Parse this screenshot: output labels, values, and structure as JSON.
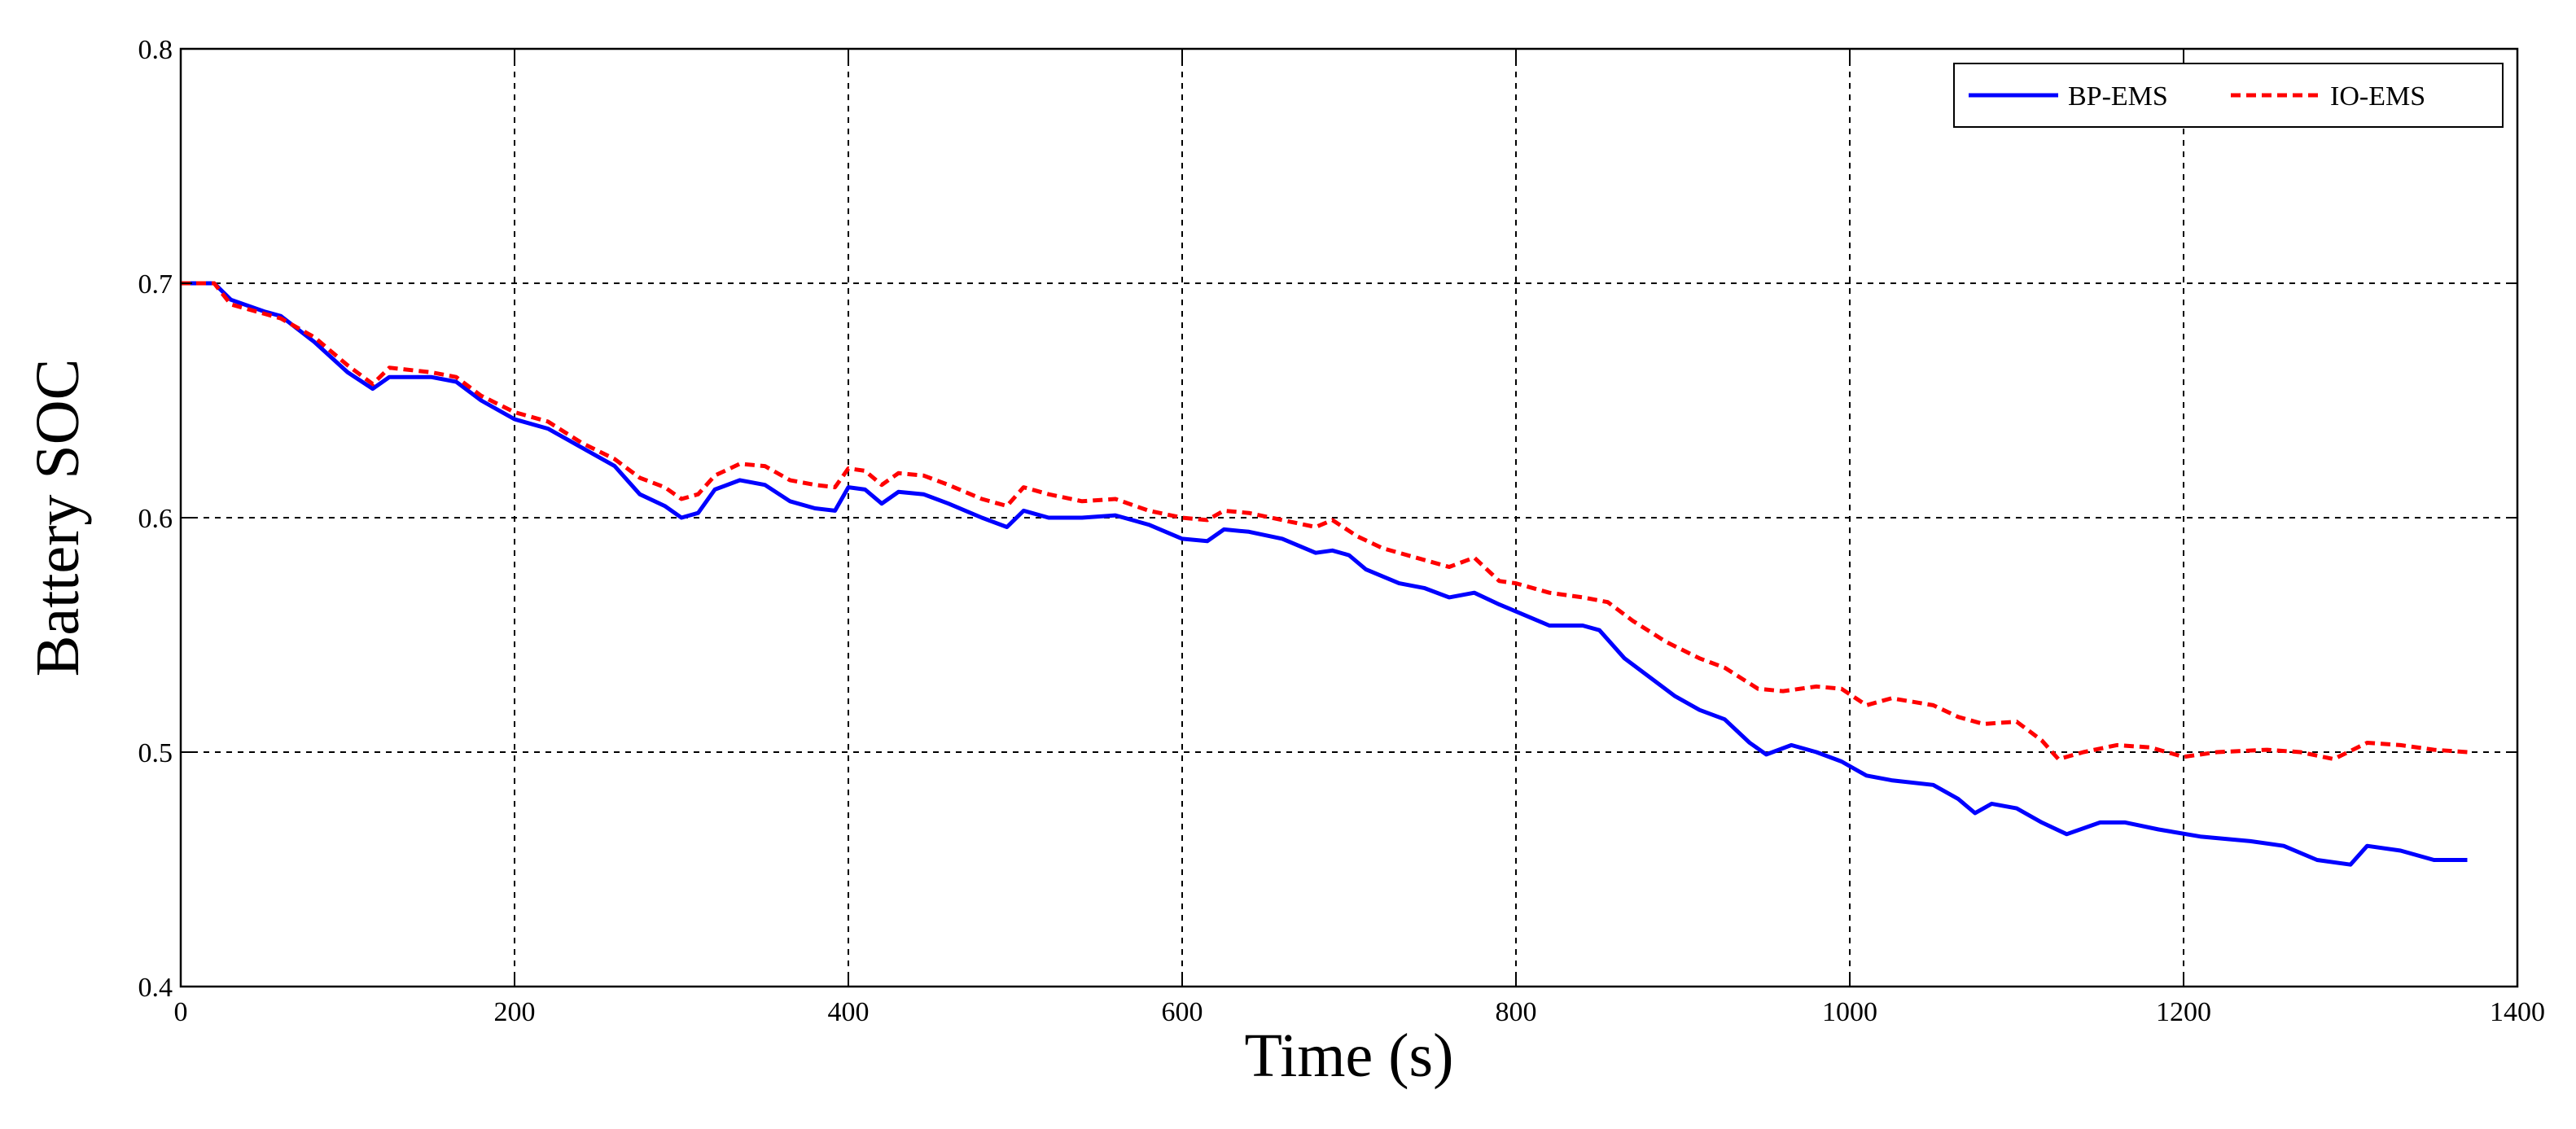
{
  "chart_data": {
    "type": "line",
    "xlabel": "Time (s)",
    "ylabel": "Battery SOC",
    "xlim": [
      0,
      1400
    ],
    "ylim": [
      0.4,
      0.8
    ],
    "x_ticks": [
      0,
      200,
      400,
      600,
      800,
      1000,
      1200,
      1400
    ],
    "x_tick_labels": [
      "0",
      "200",
      "400",
      "600",
      "800",
      "1000",
      "1200",
      "1400"
    ],
    "y_ticks": [
      0.4,
      0.5,
      0.6,
      0.7,
      0.8
    ],
    "y_tick_labels": [
      "0.4",
      "0.5",
      "0.6",
      "0.7",
      "0.8"
    ],
    "grid": true,
    "legend_position": "top-right",
    "series": [
      {
        "name": "BP-EMS",
        "color": "#0000ff",
        "style": "solid",
        "points": [
          [
            0,
            0.7
          ],
          [
            20,
            0.7
          ],
          [
            30,
            0.693
          ],
          [
            50,
            0.688
          ],
          [
            60,
            0.686
          ],
          [
            80,
            0.675
          ],
          [
            100,
            0.662
          ],
          [
            115,
            0.655
          ],
          [
            125,
            0.66
          ],
          [
            150,
            0.66
          ],
          [
            165,
            0.658
          ],
          [
            180,
            0.65
          ],
          [
            200,
            0.642
          ],
          [
            220,
            0.638
          ],
          [
            240,
            0.63
          ],
          [
            260,
            0.622
          ],
          [
            275,
            0.61
          ],
          [
            290,
            0.605
          ],
          [
            300,
            0.6
          ],
          [
            310,
            0.602
          ],
          [
            320,
            0.612
          ],
          [
            335,
            0.616
          ],
          [
            350,
            0.614
          ],
          [
            365,
            0.607
          ],
          [
            380,
            0.604
          ],
          [
            392,
            0.603
          ],
          [
            400,
            0.613
          ],
          [
            410,
            0.612
          ],
          [
            420,
            0.606
          ],
          [
            430,
            0.611
          ],
          [
            445,
            0.61
          ],
          [
            460,
            0.606
          ],
          [
            480,
            0.6
          ],
          [
            495,
            0.596
          ],
          [
            505,
            0.603
          ],
          [
            520,
            0.6
          ],
          [
            540,
            0.6
          ],
          [
            560,
            0.601
          ],
          [
            580,
            0.597
          ],
          [
            600,
            0.591
          ],
          [
            615,
            0.59
          ],
          [
            625,
            0.595
          ],
          [
            640,
            0.594
          ],
          [
            660,
            0.591
          ],
          [
            680,
            0.585
          ],
          [
            690,
            0.586
          ],
          [
            700,
            0.584
          ],
          [
            710,
            0.578
          ],
          [
            730,
            0.572
          ],
          [
            745,
            0.57
          ],
          [
            760,
            0.566
          ],
          [
            775,
            0.568
          ],
          [
            790,
            0.563
          ],
          [
            800,
            0.56
          ],
          [
            820,
            0.554
          ],
          [
            840,
            0.554
          ],
          [
            850,
            0.552
          ],
          [
            865,
            0.54
          ],
          [
            880,
            0.532
          ],
          [
            895,
            0.524
          ],
          [
            910,
            0.518
          ],
          [
            925,
            0.514
          ],
          [
            940,
            0.504
          ],
          [
            950,
            0.499
          ],
          [
            965,
            0.503
          ],
          [
            980,
            0.5
          ],
          [
            995,
            0.496
          ],
          [
            1010,
            0.49
          ],
          [
            1025,
            0.488
          ],
          [
            1050,
            0.486
          ],
          [
            1065,
            0.48
          ],
          [
            1075,
            0.474
          ],
          [
            1085,
            0.478
          ],
          [
            1100,
            0.476
          ],
          [
            1115,
            0.47
          ],
          [
            1130,
            0.465
          ],
          [
            1150,
            0.47
          ],
          [
            1165,
            0.47
          ],
          [
            1185,
            0.467
          ],
          [
            1210,
            0.464
          ],
          [
            1240,
            0.462
          ],
          [
            1260,
            0.46
          ],
          [
            1280,
            0.454
          ],
          [
            1300,
            0.452
          ],
          [
            1310,
            0.46
          ],
          [
            1330,
            0.458
          ],
          [
            1350,
            0.454
          ],
          [
            1370,
            0.454
          ]
        ]
      },
      {
        "name": "IO-EMS",
        "color": "#ff0000",
        "style": "dashed",
        "points": [
          [
            0,
            0.7
          ],
          [
            20,
            0.7
          ],
          [
            30,
            0.691
          ],
          [
            50,
            0.687
          ],
          [
            60,
            0.685
          ],
          [
            80,
            0.677
          ],
          [
            100,
            0.665
          ],
          [
            115,
            0.657
          ],
          [
            125,
            0.664
          ],
          [
            150,
            0.662
          ],
          [
            165,
            0.66
          ],
          [
            180,
            0.652
          ],
          [
            200,
            0.645
          ],
          [
            220,
            0.641
          ],
          [
            240,
            0.632
          ],
          [
            260,
            0.625
          ],
          [
            275,
            0.617
          ],
          [
            290,
            0.613
          ],
          [
            300,
            0.608
          ],
          [
            310,
            0.61
          ],
          [
            320,
            0.618
          ],
          [
            335,
            0.623
          ],
          [
            350,
            0.622
          ],
          [
            365,
            0.616
          ],
          [
            380,
            0.614
          ],
          [
            392,
            0.613
          ],
          [
            400,
            0.621
          ],
          [
            410,
            0.62
          ],
          [
            420,
            0.614
          ],
          [
            430,
            0.619
          ],
          [
            445,
            0.618
          ],
          [
            460,
            0.614
          ],
          [
            480,
            0.608
          ],
          [
            495,
            0.605
          ],
          [
            505,
            0.613
          ],
          [
            520,
            0.61
          ],
          [
            540,
            0.607
          ],
          [
            560,
            0.608
          ],
          [
            580,
            0.603
          ],
          [
            600,
            0.6
          ],
          [
            615,
            0.599
          ],
          [
            625,
            0.603
          ],
          [
            640,
            0.602
          ],
          [
            660,
            0.599
          ],
          [
            680,
            0.596
          ],
          [
            690,
            0.599
          ],
          [
            705,
            0.592
          ],
          [
            720,
            0.587
          ],
          [
            740,
            0.583
          ],
          [
            760,
            0.579
          ],
          [
            775,
            0.583
          ],
          [
            790,
            0.573
          ],
          [
            800,
            0.572
          ],
          [
            820,
            0.568
          ],
          [
            840,
            0.566
          ],
          [
            855,
            0.564
          ],
          [
            870,
            0.556
          ],
          [
            890,
            0.547
          ],
          [
            910,
            0.54
          ],
          [
            925,
            0.536
          ],
          [
            945,
            0.527
          ],
          [
            960,
            0.526
          ],
          [
            980,
            0.528
          ],
          [
            995,
            0.527
          ],
          [
            1010,
            0.52
          ],
          [
            1025,
            0.523
          ],
          [
            1050,
            0.52
          ],
          [
            1065,
            0.515
          ],
          [
            1080,
            0.512
          ],
          [
            1100,
            0.513
          ],
          [
            1115,
            0.505
          ],
          [
            1125,
            0.497
          ],
          [
            1140,
            0.5
          ],
          [
            1160,
            0.503
          ],
          [
            1180,
            0.502
          ],
          [
            1200,
            0.498
          ],
          [
            1220,
            0.5
          ],
          [
            1250,
            0.501
          ],
          [
            1270,
            0.5
          ],
          [
            1290,
            0.497
          ],
          [
            1310,
            0.504
          ],
          [
            1330,
            0.503
          ],
          [
            1350,
            0.501
          ],
          [
            1370,
            0.5
          ]
        ]
      }
    ]
  }
}
